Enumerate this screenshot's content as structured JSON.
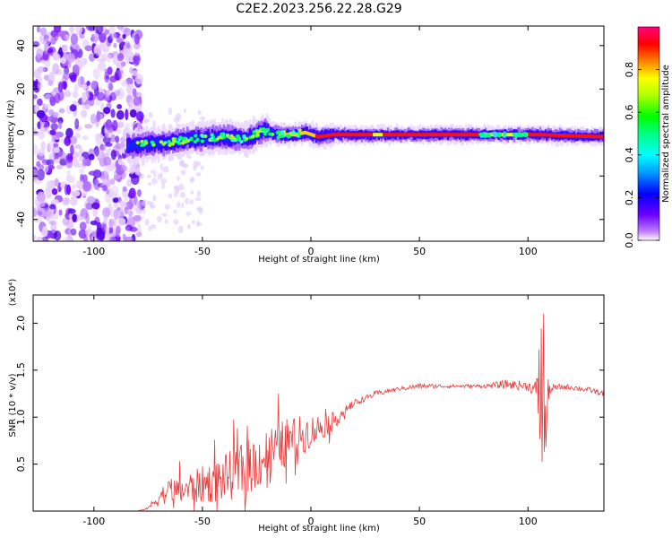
{
  "figure": {
    "title": "C2E2.2023.256.22.28.G29"
  },
  "colors": {
    "snr_line": "#e83a3a",
    "background": "#ffffff"
  },
  "chart_data": [
    {
      "type": "heatmap",
      "name": "spectrogram",
      "title": "",
      "xlabel": "Height of straight line (km)",
      "ylabel": "Frequency (Hz)",
      "xlim": [
        -128,
        135
      ],
      "ylim": [
        -50,
        49
      ],
      "xticks": [
        -100,
        -50,
        0,
        50,
        100
      ],
      "yticks": [
        -40,
        -20,
        0,
        20,
        40
      ],
      "grid": false,
      "colorscale": "rainbow (purple to red)",
      "colorbar": {
        "label": "Normalized spectral amplitude",
        "range": [
          0.0,
          1.0
        ],
        "ticks": [
          0.0,
          0.2,
          0.4,
          0.6,
          0.8
        ],
        "tick_labels": [
          "0.0",
          "0.2",
          "0.4",
          "0.6",
          "0.8"
        ]
      },
      "ridge": {
        "description_points_x": [
          -85,
          -70,
          -55,
          -40,
          -30,
          -22,
          -15,
          -8,
          -3,
          0,
          3,
          10,
          30,
          60,
          90,
          100,
          105,
          135
        ],
        "description_points_y": [
          -6,
          -5,
          -3,
          -2,
          -3,
          1,
          -1,
          -1,
          0,
          -1,
          -2,
          -1,
          -1,
          -1,
          -1,
          -1,
          -1,
          -2
        ],
        "noise_region_x": [
          -128,
          -78
        ]
      }
    },
    {
      "type": "line",
      "name": "snr",
      "title": "",
      "xlabel": "Height of straight line (km)",
      "ylabel": "SNR (10 * v/v)",
      "y_multiplier": "(x10⁴)",
      "xlim": [
        -128,
        135
      ],
      "ylim": [
        0,
        2.3
      ],
      "xticks": [
        -100,
        -50,
        0,
        50,
        100
      ],
      "yticks": [
        0.5,
        1.0,
        1.5,
        2.0
      ],
      "ytick_labels": [
        "0.5",
        "1.0",
        "1.5",
        "2.0"
      ],
      "grid": false,
      "series": [
        {
          "color": "#e83a3a",
          "envelope_x": [
            -128,
            -80,
            -75,
            -70,
            -65,
            -60,
            -50,
            -40,
            -30,
            -20,
            -10,
            0,
            10,
            15,
            20,
            25,
            30,
            40,
            50,
            60,
            70,
            80,
            90,
            100,
            103,
            105,
            106,
            107,
            108,
            110,
            115,
            120,
            125,
            130,
            135
          ],
          "envelope_y": [
            0.0,
            0.0,
            0.03,
            0.15,
            0.22,
            0.22,
            0.28,
            0.35,
            0.45,
            0.6,
            0.75,
            0.85,
            0.95,
            1.05,
            1.15,
            1.2,
            1.25,
            1.3,
            1.33,
            1.33,
            1.33,
            1.33,
            1.35,
            1.33,
            1.3,
            1.2,
            0.8,
            1.3,
            1.0,
            1.3,
            1.32,
            1.32,
            1.3,
            1.28,
            1.25
          ],
          "noise_amplitude": [
            0,
            0,
            0.01,
            0.1,
            0.12,
            0.15,
            0.2,
            0.25,
            0.3,
            0.3,
            0.25,
            0.18,
            0.1,
            0.06,
            0.04,
            0.03,
            0.03,
            0.02,
            0.03,
            0.02,
            0.02,
            0.02,
            0.05,
            0.05,
            0.08,
            0.3,
            0.9,
            0.7,
            0.5,
            0.05,
            0.03,
            0.03,
            0.03,
            0.03,
            0.03
          ]
        }
      ]
    }
  ]
}
